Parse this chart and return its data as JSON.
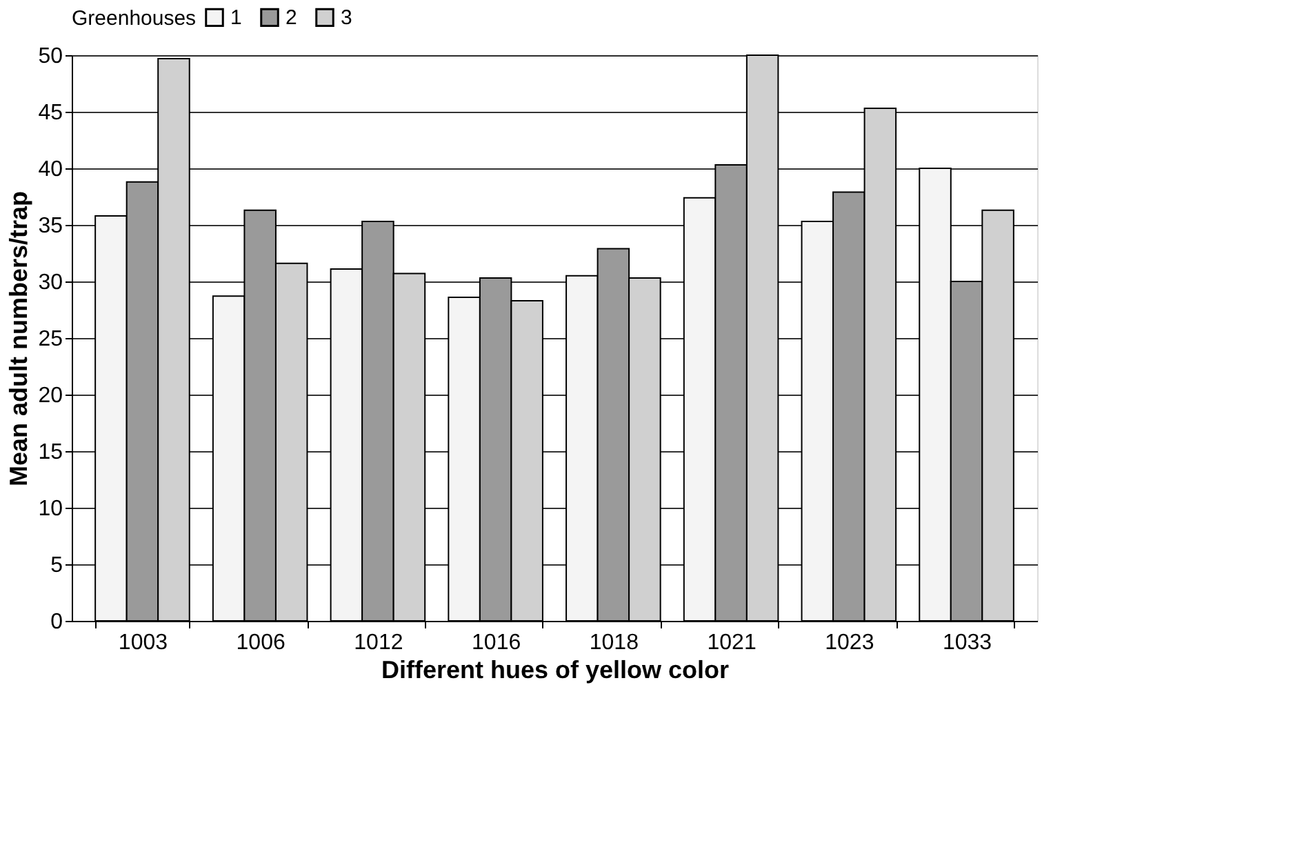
{
  "chart_data": {
    "type": "bar",
    "xlabel": "Different hues of yellow color",
    "ylabel": "Mean adult numbers/trap",
    "legend_title": "Greenhouses",
    "categories": [
      "1003",
      "1006",
      "1012",
      "1016",
      "1018",
      "1021",
      "1023",
      "1033"
    ],
    "series": [
      {
        "name": "1",
        "color": "#f4f4f4",
        "values": [
          35.8,
          28.7,
          31.1,
          28.6,
          30.5,
          37.4,
          35.3,
          40.0
        ]
      },
      {
        "name": "2",
        "color": "#9a9a9a",
        "values": [
          38.8,
          36.3,
          35.3,
          30.3,
          32.9,
          40.3,
          37.9,
          30.0
        ]
      },
      {
        "name": "3",
        "color": "#d0d0d0",
        "values": [
          49.7,
          31.6,
          30.7,
          28.3,
          30.3,
          50.0,
          45.3,
          36.3
        ]
      }
    ],
    "ylim": [
      0,
      50
    ],
    "yticks": [
      0,
      5,
      10,
      15,
      20,
      25,
      30,
      35,
      40,
      45,
      50
    ],
    "grid": "y",
    "legend": "top"
  }
}
